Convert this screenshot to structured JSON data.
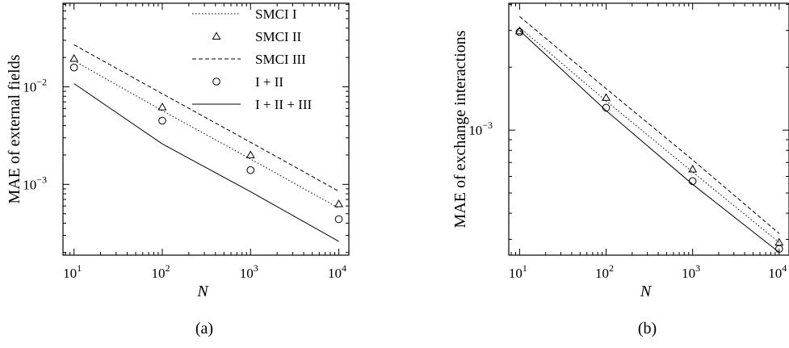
{
  "chart_data": [
    {
      "type": "line",
      "panel_label": "(a)",
      "xlabel": "N",
      "ylabel": "MAE of external fields",
      "xscale": "log",
      "yscale": "log",
      "xlim": [
        7.5,
        13000
      ],
      "ylim": [
        0.000188,
        0.072
      ],
      "x_ticks": [
        {
          "value": 10,
          "base": "10",
          "exp": "1"
        },
        {
          "value": 100,
          "base": "10",
          "exp": "2"
        },
        {
          "value": 1000,
          "base": "10",
          "exp": "3"
        },
        {
          "value": 10000,
          "base": "10",
          "exp": "4"
        }
      ],
      "y_ticks": [
        {
          "value": 0.001,
          "base": "10",
          "exp": "−3"
        },
        {
          "value": 0.01,
          "base": "10",
          "exp": "−2"
        }
      ],
      "legend_position": "top-right",
      "x": [
        10,
        100,
        1000,
        10000
      ],
      "series": [
        {
          "name": "SMCI I",
          "style": "dotted",
          "values": [
            0.0185,
            0.0057,
            0.00182,
            0.00057
          ]
        },
        {
          "name": "SMCI II",
          "style": "triangle",
          "values": [
            0.0195,
            0.0062,
            0.002,
            0.00063
          ]
        },
        {
          "name": "SMCI III",
          "style": "dashed",
          "values": [
            0.027,
            0.0085,
            0.0027,
            0.00085
          ]
        },
        {
          "name": "I + II",
          "style": "circle",
          "values": [
            0.0158,
            0.0045,
            0.0014,
            0.00044
          ]
        },
        {
          "name": "I + II + III",
          "style": "solid",
          "values": [
            0.0108,
            0.0026,
            0.00084,
            0.00026
          ]
        }
      ]
    },
    {
      "type": "line",
      "panel_label": "(b)",
      "xlabel": "N",
      "ylabel": "MAE of exchange interactions",
      "xscale": "log",
      "yscale": "log",
      "xlim": [
        7.5,
        13000
      ],
      "ylim": [
        0.000252,
        0.00405
      ],
      "x_ticks": [
        {
          "value": 10,
          "base": "10",
          "exp": "1"
        },
        {
          "value": 100,
          "base": "10",
          "exp": "2"
        },
        {
          "value": 1000,
          "base": "10",
          "exp": "3"
        },
        {
          "value": 10000,
          "base": "10",
          "exp": "4"
        }
      ],
      "y_ticks": [
        {
          "value": 0.001,
          "base": "10",
          "exp": "−3"
        }
      ],
      "x": [
        10,
        100,
        1000,
        10000
      ],
      "series": [
        {
          "name": "SMCI I",
          "style": "dotted",
          "values": [
            0.0031,
            0.00138,
            0.00063,
            0.00029
          ]
        },
        {
          "name": "SMCI II",
          "style": "triangle",
          "values": [
            0.00298,
            0.00143,
            0.00065,
            0.00029
          ]
        },
        {
          "name": "SMCI III",
          "style": "dashed",
          "values": [
            0.0035,
            0.00158,
            0.00072,
            0.00032
          ]
        },
        {
          "name": "I + II",
          "style": "circle",
          "values": [
            0.00295,
            0.00128,
            0.00057,
            0.00027
          ]
        },
        {
          "name": "I + II + III",
          "style": "solid",
          "values": [
            0.003,
            0.00124,
            0.00055,
            0.00026
          ]
        }
      ]
    }
  ]
}
